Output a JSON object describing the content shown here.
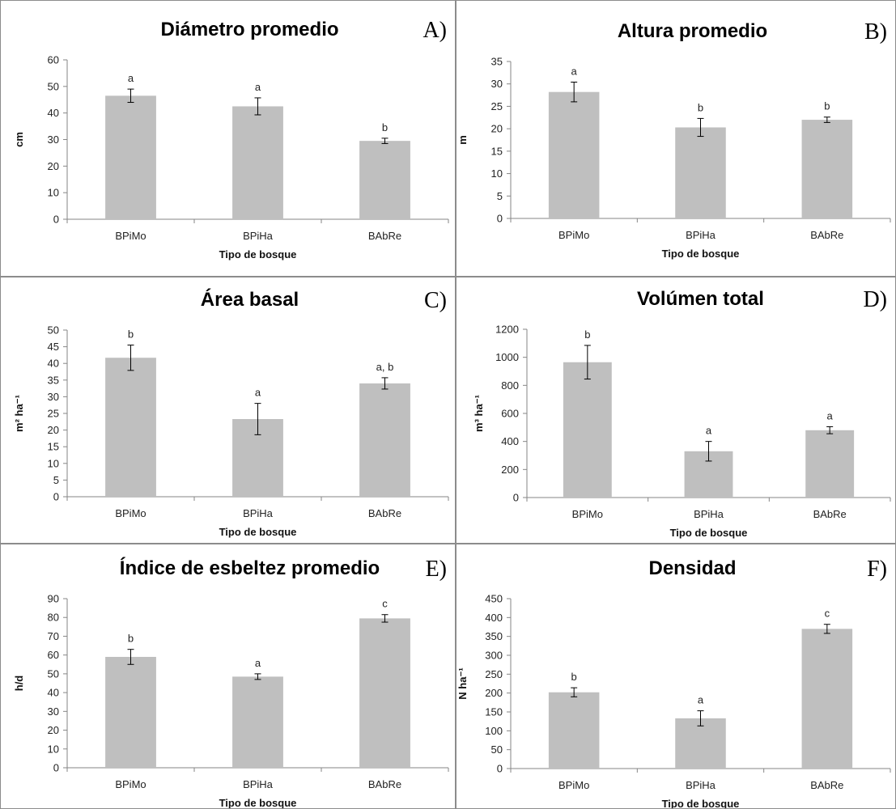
{
  "chart_data": [
    {
      "panel_letter": "A)",
      "type": "bar",
      "title": "Diámetro promedio",
      "xlabel": "Tipo de bosque",
      "ylabel": "cm",
      "categories": [
        "BPiMo",
        "BPiHa",
        "BAbRe"
      ],
      "values": [
        46.5,
        42.5,
        29.5
      ],
      "errors": [
        2.5,
        3.2,
        1.0
      ],
      "significance": [
        "a",
        "a",
        "b"
      ],
      "ylim": [
        0,
        60
      ],
      "yticks": [
        0,
        10,
        20,
        30,
        40,
        50,
        60
      ],
      "bar_color": "#bfbfbf"
    },
    {
      "panel_letter": "B)",
      "type": "bar",
      "title": "Altura promedio",
      "xlabel": "Tipo de bosque",
      "ylabel": "m",
      "categories": [
        "BPiMo",
        "BPiHa",
        "BAbRe"
      ],
      "values": [
        28.2,
        20.3,
        22.0
      ],
      "errors": [
        2.2,
        2.0,
        0.6
      ],
      "significance": [
        "a",
        "b",
        "b"
      ],
      "ylim": [
        0,
        35
      ],
      "yticks": [
        0,
        5,
        10,
        15,
        20,
        25,
        30,
        35
      ],
      "bar_color": "#bfbfbf"
    },
    {
      "panel_letter": "C)",
      "type": "bar",
      "title": "Área basal",
      "xlabel": "Tipo de bosque",
      "ylabel": "m² ha⁻¹",
      "categories": [
        "BPiMo",
        "BPiHa",
        "BAbRe"
      ],
      "values": [
        41.7,
        23.3,
        34.0
      ],
      "errors": [
        3.8,
        4.7,
        1.7
      ],
      "significance": [
        "b",
        "a",
        "a, b"
      ],
      "ylim": [
        0,
        50
      ],
      "yticks": [
        0,
        5,
        10,
        15,
        20,
        25,
        30,
        35,
        40,
        45,
        50
      ],
      "bar_color": "#bfbfbf"
    },
    {
      "panel_letter": "D)",
      "type": "bar",
      "title": "Volúmen total",
      "xlabel": "Tipo de bosque",
      "ylabel": "m³ ha⁻¹",
      "categories": [
        "BPiMo",
        "BPiHa",
        "BAbRe"
      ],
      "values": [
        965,
        330,
        480
      ],
      "errors": [
        120,
        70,
        25
      ],
      "significance": [
        "b",
        "a",
        "a"
      ],
      "ylim": [
        0,
        1200
      ],
      "yticks": [
        0,
        200,
        400,
        600,
        800,
        1000,
        1200
      ],
      "bar_color": "#bfbfbf"
    },
    {
      "panel_letter": "E)",
      "type": "bar",
      "title": "Índice de esbeltez promedio",
      "xlabel": "Tipo de bosque",
      "ylabel": "h/d",
      "categories": [
        "BPiMo",
        "BPiHa",
        "BAbRe"
      ],
      "values": [
        59,
        48.5,
        79.5
      ],
      "errors": [
        4,
        1.5,
        2
      ],
      "significance": [
        "b",
        "a",
        "c"
      ],
      "ylim": [
        0,
        90
      ],
      "yticks": [
        0,
        10,
        20,
        30,
        40,
        50,
        60,
        70,
        80,
        90
      ],
      "bar_color": "#bfbfbf"
    },
    {
      "panel_letter": "F)",
      "type": "bar",
      "title": "Densidad",
      "xlabel": "Tipo de bosque",
      "ylabel": "N ha⁻¹",
      "categories": [
        "BPiMo",
        "BPiHa",
        "BAbRe"
      ],
      "values": [
        202,
        133,
        370
      ],
      "errors": [
        12,
        20,
        12
      ],
      "significance": [
        "b",
        "a",
        "c"
      ],
      "ylim": [
        0,
        450
      ],
      "yticks": [
        0,
        50,
        100,
        150,
        200,
        250,
        300,
        350,
        400,
        450
      ],
      "bar_color": "#bfbfbf"
    }
  ]
}
